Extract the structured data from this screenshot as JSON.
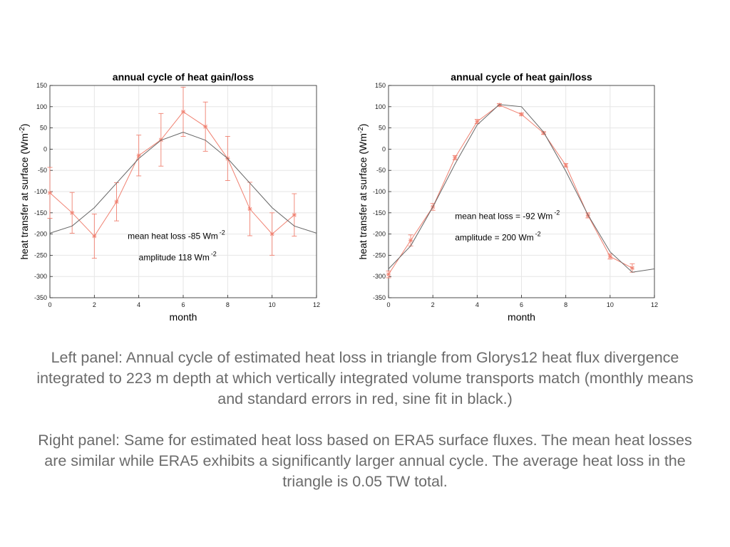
{
  "chart_data": [
    {
      "type": "line",
      "title": "annual cycle of heat gain/loss",
      "xlabel": "month",
      "ylabel_main": "heat transfer at surface (Wm",
      "ylabel_sup": "-2",
      "ylabel_close": ")",
      "xlim": [
        0,
        12
      ],
      "ylim": [
        -350,
        150
      ],
      "xticks": [
        0,
        2,
        4,
        6,
        8,
        10,
        12
      ],
      "yticks": [
        -350,
        -300,
        -250,
        -200,
        -150,
        -100,
        -50,
        0,
        50,
        100,
        150
      ],
      "grid": true,
      "annotations": [
        {
          "text": "mean heat loss -85 Wm",
          "sup": "-2",
          "x": 3.5,
          "y": -205
        },
        {
          "text": "amplitude 118 Wm",
          "sup": "-2",
          "x": 4.0,
          "y": -255
        }
      ],
      "series": [
        {
          "color": "#f08070",
          "x": [
            0,
            1,
            2,
            3,
            4,
            5,
            6,
            7,
            8,
            9,
            10,
            11
          ],
          "y": [
            -103,
            -150,
            -205,
            -124,
            -15,
            22,
            88,
            53,
            -22,
            -141,
            -200,
            -155
          ],
          "err": [
            60,
            48,
            52,
            45,
            48,
            62,
            58,
            58,
            52,
            63,
            50,
            50
          ]
        },
        {
          "color": "#666666",
          "x": [
            0,
            1,
            2,
            3,
            4,
            5,
            6,
            7,
            8,
            9,
            10,
            11,
            12
          ],
          "y": [
            -198,
            -181,
            -138,
            -80,
            -22,
            21,
            40,
            21,
            -22,
            -80,
            -138,
            -181,
            -198
          ]
        }
      ]
    },
    {
      "type": "line",
      "title": "annual cycle of heat gain/loss",
      "xlabel": "month",
      "ylabel_main": "heat transfer at surface (Wm",
      "ylabel_sup": "-2",
      "ylabel_close": ")",
      "xlim": [
        0,
        12
      ],
      "ylim": [
        -350,
        150
      ],
      "xticks": [
        0,
        2,
        4,
        6,
        8,
        10,
        12
      ],
      "yticks": [
        -350,
        -300,
        -250,
        -200,
        -150,
        -100,
        -50,
        0,
        50,
        100,
        150
      ],
      "grid": true,
      "annotations": [
        {
          "text": "mean heat loss = -92 Wm",
          "sup": "-2",
          "x": 3.0,
          "y": -158
        },
        {
          "text": "amplitude = 200 Wm",
          "sup": "-2",
          "x": 3.0,
          "y": -208
        }
      ],
      "series": [
        {
          "color": "#f08070",
          "x": [
            0,
            1,
            2,
            3,
            4,
            5,
            6,
            7,
            8,
            9,
            10,
            11
          ],
          "y": [
            -295,
            -215,
            -136,
            -20,
            65,
            104,
            82,
            38,
            -38,
            -156,
            -253,
            -280
          ],
          "err": [
            8,
            13,
            8,
            5,
            5,
            3,
            3,
            3,
            4,
            6,
            6,
            10
          ]
        },
        {
          "color": "#666666",
          "x": [
            0,
            1,
            2,
            3,
            4,
            5,
            6,
            7,
            8,
            9,
            10,
            11,
            12
          ],
          "y": [
            -282,
            -228,
            -136,
            -35,
            57,
            105,
            100,
            40,
            -52,
            -155,
            -242,
            -290,
            -282
          ]
        }
      ]
    }
  ],
  "caption": {
    "p1": "Left panel: Annual cycle of estimated heat loss in triangle from Glorys12 heat flux divergence integrated to 223 m depth at which vertically integrated volume transports match (monthly means and standard errors in red, sine fit in black.)",
    "p2": "Right panel: Same for estimated heat loss based on ERA5 surface fluxes. The mean heat losses are similar while ERA5 exhibits a significantly larger annual cycle. The average heat loss in the triangle is 0.05 TW total."
  }
}
